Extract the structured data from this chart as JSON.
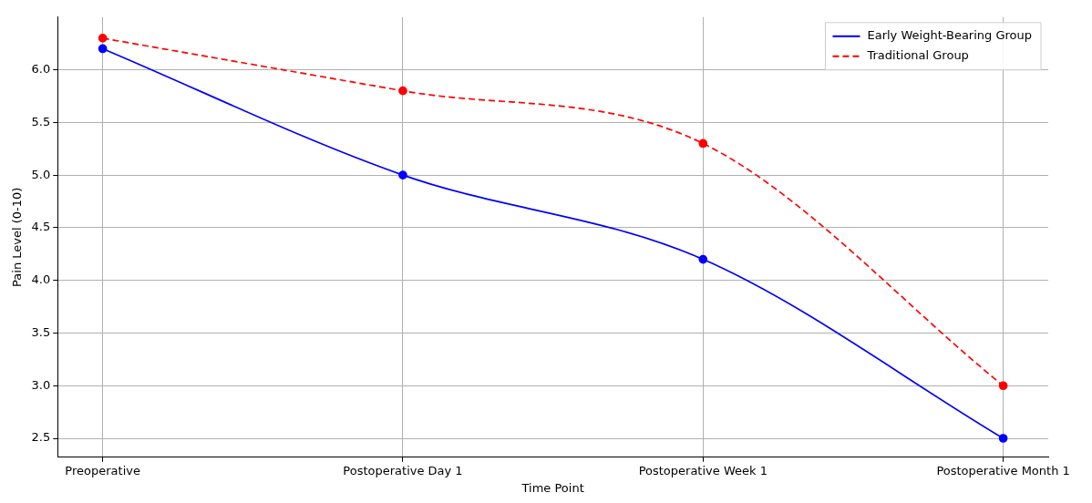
{
  "chart_data": {
    "type": "line",
    "xlabel": "Time Point",
    "ylabel": "Pain Level (0-10)",
    "categories": [
      "Preoperative",
      "Postoperative Day 1",
      "Postoperative Week 1",
      "Postoperative Month 1"
    ],
    "series": [
      {
        "name": "Early Weight-Bearing Group",
        "color": "#0000ff",
        "values": [
          6.2,
          5.0,
          4.2,
          2.5
        ],
        "line_style": "solid"
      },
      {
        "name": "Traditional Group",
        "color": "#ff0000",
        "values": [
          6.3,
          5.8,
          5.3,
          3.0
        ],
        "line_style": "dashed"
      }
    ],
    "ylim": [
      2.32,
      6.5
    ],
    "yticks": [
      2.5,
      {
        "value": 3,
        "label": "3.0"
      },
      3.5,
      {
        "value": 4,
        "label": "4.0"
      },
      4.5,
      {
        "value": 5,
        "label": "5.0"
      },
      5.5,
      {
        "value": 6,
        "label": "6.0"
      }
    ],
    "grid": true,
    "legend": "top right",
    "marker": "circle"
  }
}
